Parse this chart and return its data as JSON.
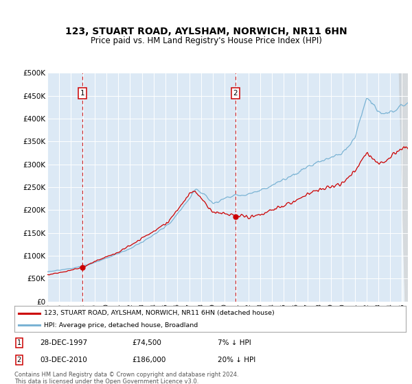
{
  "title": "123, STUART ROAD, AYLSHAM, NORWICH, NR11 6HN",
  "subtitle": "Price paid vs. HM Land Registry's House Price Index (HPI)",
  "title_fontsize": 10,
  "subtitle_fontsize": 8.5,
  "background_color": "#dce9f5",
  "hpi_color": "#7ab3d4",
  "price_color": "#cc0000",
  "dashed_line_color": "#cc0000",
  "ylim": [
    0,
    500000
  ],
  "yticks": [
    0,
    50000,
    100000,
    150000,
    200000,
    250000,
    300000,
    350000,
    400000,
    450000,
    500000
  ],
  "ytick_labels": [
    "£0",
    "£50K",
    "£100K",
    "£150K",
    "£200K",
    "£250K",
    "£300K",
    "£350K",
    "£400K",
    "£450K",
    "£500K"
  ],
  "sale1_year": 1997.97,
  "sale1_price": 74500,
  "sale1_label": "1",
  "sale1_date": "28-DEC-1997",
  "sale1_amount": "£74,500",
  "sale1_hpi": "7% ↓ HPI",
  "sale2_year": 2010.92,
  "sale2_price": 186000,
  "sale2_label": "2",
  "sale2_date": "03-DEC-2010",
  "sale2_amount": "£186,000",
  "sale2_hpi": "20% ↓ HPI",
  "legend_line1": "123, STUART ROAD, AYLSHAM, NORWICH, NR11 6HN (detached house)",
  "legend_line2": "HPI: Average price, detached house, Broadland",
  "footer": "Contains HM Land Registry data © Crown copyright and database right 2024.\nThis data is licensed under the Open Government Licence v3.0.",
  "xmin": 1995,
  "xmax": 2025.5
}
